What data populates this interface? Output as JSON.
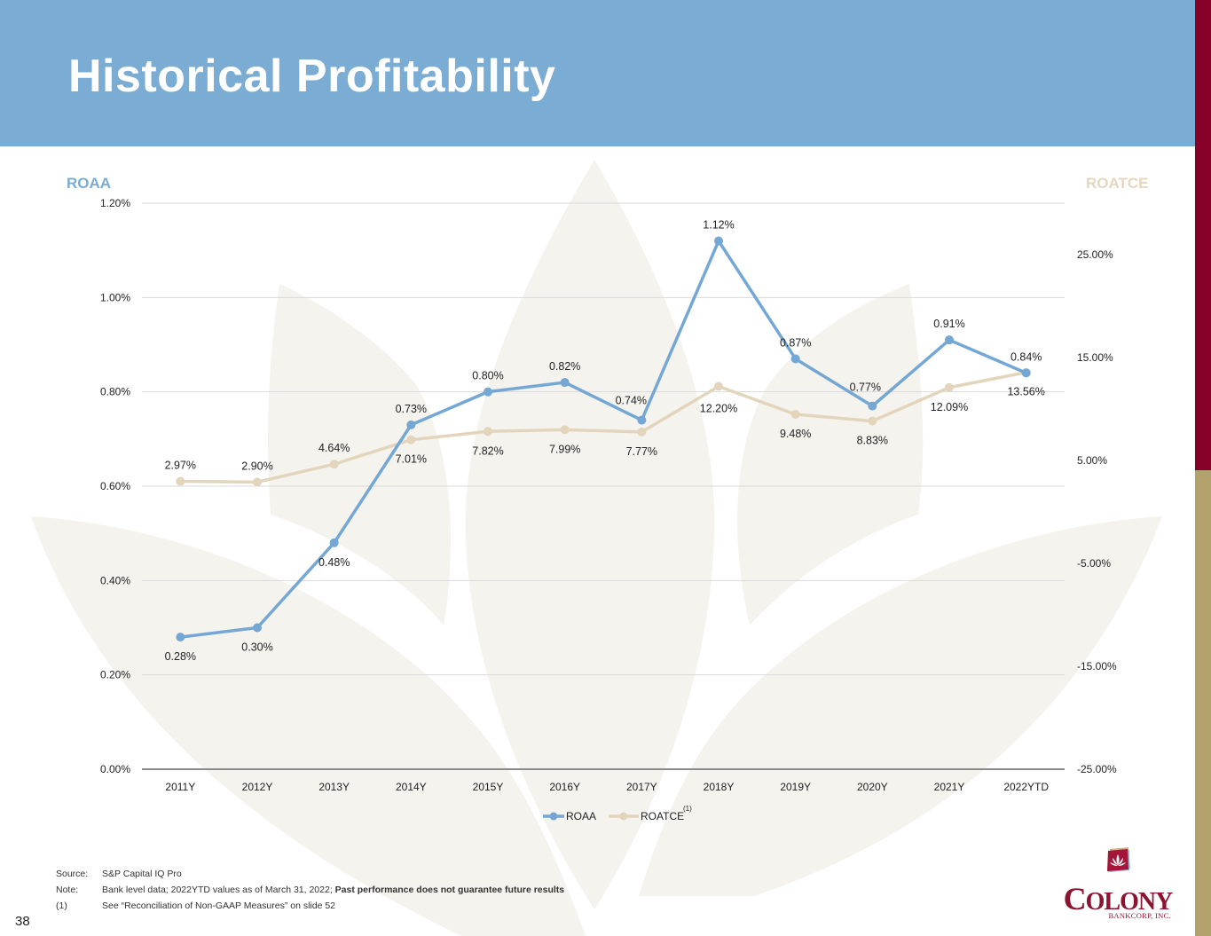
{
  "slide": {
    "title": "Historical Profitability",
    "page_number": "38"
  },
  "colors": {
    "header": "#7bacd3",
    "roaa": "#74a7d3",
    "roatce": "#e3d5bc",
    "side_maroon": "#870027",
    "side_gold": "#b4a26d",
    "brand": "#8b1530"
  },
  "chart_data": {
    "type": "line",
    "title": "",
    "xlabel": "",
    "left_axis_title": "ROAA",
    "right_axis_title": "ROATCE",
    "categories": [
      "2011Y",
      "2012Y",
      "2013Y",
      "2014Y",
      "2015Y",
      "2016Y",
      "2017Y",
      "2018Y",
      "2019Y",
      "2020Y",
      "2021Y",
      "2022YTD"
    ],
    "series": [
      {
        "name": "ROAA",
        "axis": "left",
        "values": [
          0.28,
          0.3,
          0.48,
          0.73,
          0.8,
          0.82,
          0.74,
          1.12,
          0.87,
          0.77,
          0.91,
          0.84
        ],
        "labels": [
          "0.28%",
          "0.30%",
          "0.48%",
          "0.73%",
          "0.80%",
          "0.82%",
          "0.74%",
          "1.12%",
          "0.87%",
          "0.77%",
          "0.91%",
          "0.84%"
        ],
        "label_pos": [
          "below",
          "below",
          "below",
          "above",
          "above",
          "above",
          "above",
          "above",
          "above",
          "above",
          "above",
          "above"
        ]
      },
      {
        "name": "ROATCE",
        "axis": "right",
        "values": [
          2.97,
          2.9,
          4.64,
          7.01,
          7.82,
          7.99,
          7.77,
          12.2,
          9.48,
          8.83,
          12.09,
          13.56
        ],
        "labels": [
          "2.97%",
          "2.90%",
          "4.64%",
          "7.01%",
          "7.82%",
          "7.99%",
          "7.77%",
          "12.20%",
          "9.48%",
          "8.83%",
          "12.09%",
          "13.56%"
        ],
        "label_pos": [
          "above",
          "above",
          "above",
          "below",
          "below",
          "below",
          "below",
          "below",
          "below",
          "below",
          "below",
          "below"
        ]
      }
    ],
    "left_axis": {
      "ylim": [
        0,
        1.2
      ],
      "ticks": [
        0,
        0.2,
        0.4,
        0.6,
        0.8,
        1.0,
        1.2
      ],
      "tick_labels": [
        "0.00%",
        "0.20%",
        "0.40%",
        "0.60%",
        "0.80%",
        "1.00%",
        "1.20%"
      ]
    },
    "right_axis": {
      "ylim": [
        -25,
        30
      ],
      "ticks": [
        -25,
        -15,
        -5,
        5,
        15,
        25
      ],
      "tick_labels": [
        "-25.00%",
        "-15.00%",
        "-5.00%",
        "5.00%",
        "15.00%",
        "25.00%"
      ]
    },
    "grid": true,
    "legend": {
      "placement": "bottom-center",
      "entries": [
        "ROAA",
        "ROATCE"
      ],
      "roatce_superscript": "(1)"
    }
  },
  "footer": {
    "source_label": "Source:",
    "source_text": "S&P Capital IQ Pro",
    "note_label": "Note:",
    "note_text": "Bank level data; 2022YTD values as of March 31, 2022; ",
    "note_bold": "Past performance does not guarantee future results",
    "footnote_label": "(1)",
    "footnote_text": "See “Reconciliation of Non-GAAP Measures” on slide 52"
  },
  "logo": {
    "icon": "lotus-icon",
    "name_first": "C",
    "name_rest": "OLONY",
    "subtitle": "BANKCORP, INC."
  }
}
